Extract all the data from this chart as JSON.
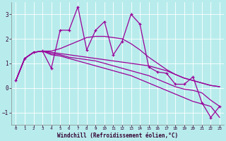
{
  "x": [
    0,
    1,
    2,
    3,
    4,
    5,
    6,
    7,
    8,
    9,
    10,
    11,
    12,
    13,
    14,
    15,
    16,
    17,
    18,
    19,
    20,
    21,
    22,
    23
  ],
  "series1": [
    0.3,
    1.2,
    1.45,
    1.5,
    0.8,
    2.35,
    2.35,
    3.3,
    1.55,
    2.35,
    2.7,
    1.35,
    1.9,
    3.0,
    2.6,
    0.85,
    0.65,
    0.6,
    0.15,
    0.15,
    0.45,
    -0.6,
    -1.2,
    -0.75
  ],
  "line_upper": [
    0.3,
    1.2,
    1.45,
    1.5,
    1.5,
    1.6,
    1.75,
    1.9,
    2.05,
    2.1,
    2.1,
    2.05,
    2.0,
    1.8,
    1.55,
    1.25,
    1.0,
    0.75,
    0.55,
    0.4,
    0.3,
    0.2,
    0.1,
    0.05
  ],
  "line_mid1": [
    0.3,
    1.2,
    1.45,
    1.5,
    1.45,
    1.4,
    1.35,
    1.3,
    1.25,
    1.2,
    1.15,
    1.1,
    1.05,
    1.0,
    0.95,
    0.9,
    0.8,
    0.7,
    0.55,
    0.4,
    0.3,
    0.2,
    0.1,
    0.05
  ],
  "line_mid2": [
    0.3,
    1.2,
    1.45,
    1.5,
    1.4,
    1.35,
    1.25,
    1.2,
    1.15,
    1.1,
    1.0,
    0.9,
    0.8,
    0.7,
    0.6,
    0.5,
    0.35,
    0.2,
    0.05,
    -0.05,
    -0.1,
    -0.2,
    -0.5,
    -0.75
  ],
  "line_lower": [
    0.3,
    1.2,
    1.45,
    1.5,
    1.35,
    1.3,
    1.2,
    1.1,
    1.0,
    0.9,
    0.8,
    0.7,
    0.6,
    0.5,
    0.35,
    0.2,
    0.05,
    -0.1,
    -0.25,
    -0.4,
    -0.55,
    -0.65,
    -0.75,
    -1.2
  ],
  "bg_color": "#b8ecec",
  "line_color": "#990099",
  "grid_color": "#ffffff",
  "xlabel": "Windchill (Refroidissement éolien,°C)",
  "ylim": [
    -1.5,
    3.5
  ],
  "xlim": [
    -0.5,
    23.5
  ],
  "yticks": [
    -1,
    0,
    1,
    2,
    3
  ],
  "xticks": [
    0,
    1,
    2,
    3,
    4,
    5,
    6,
    7,
    8,
    9,
    10,
    11,
    12,
    13,
    14,
    15,
    16,
    17,
    18,
    19,
    20,
    21,
    22,
    23
  ],
  "figsize": [
    3.2,
    2.0
  ],
  "dpi": 100
}
